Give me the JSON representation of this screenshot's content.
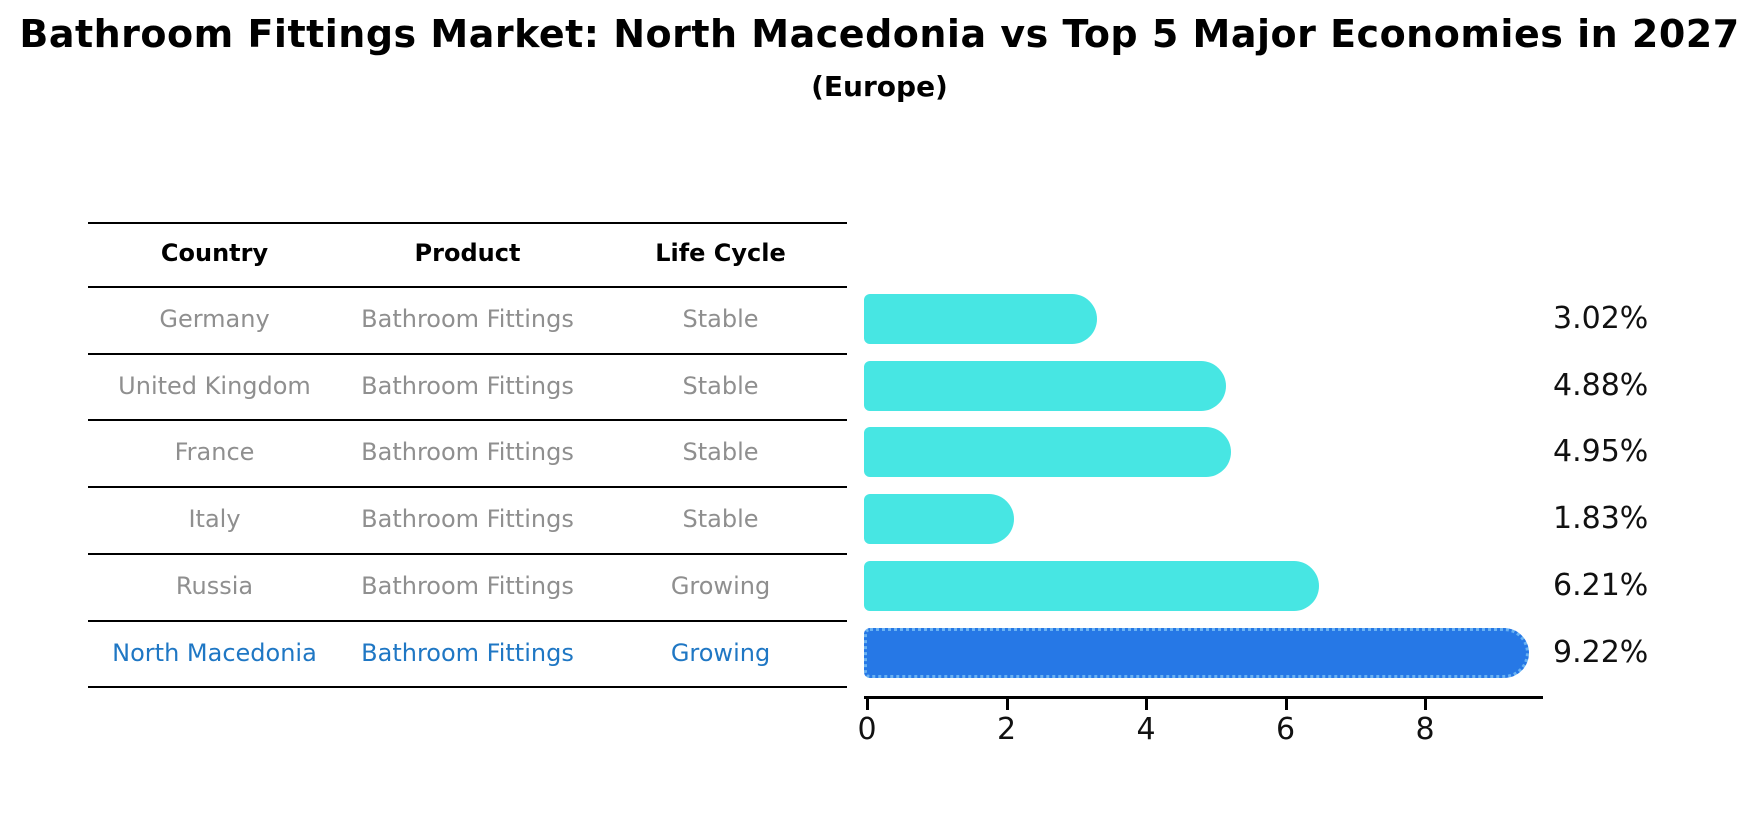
{
  "title": "Bathroom Fittings Market: North Macedonia vs Top 5 Major Economies in 2027",
  "subtitle": "(Europe)",
  "table": {
    "headers": [
      "Country",
      "Product",
      "Life Cycle"
    ],
    "rows": [
      {
        "country": "Germany",
        "product": "Bathroom Fittings",
        "life_cycle": "Stable",
        "highlight": false
      },
      {
        "country": "United Kingdom",
        "product": "Bathroom Fittings",
        "life_cycle": "Stable",
        "highlight": false
      },
      {
        "country": "France",
        "product": "Bathroom Fittings",
        "life_cycle": "Stable",
        "highlight": false
      },
      {
        "country": "Italy",
        "product": "Bathroom Fittings",
        "life_cycle": "Stable",
        "highlight": false
      },
      {
        "country": "Russia",
        "product": "Bathroom Fittings",
        "life_cycle": "Growing",
        "highlight": false
      },
      {
        "country": "North Macedonia",
        "product": "Bathroom Fittings",
        "life_cycle": "Growing",
        "highlight": true
      }
    ]
  },
  "chart_data": {
    "type": "bar",
    "orientation": "horizontal",
    "title": "Bathroom Fittings Market: North Macedonia vs Top 5 Major Economies in 2027",
    "subtitle": "(Europe)",
    "categories": [
      "Germany",
      "United Kingdom",
      "France",
      "Italy",
      "Russia",
      "North Macedonia"
    ],
    "values": [
      3.02,
      4.88,
      4.95,
      1.83,
      6.21,
      9.22
    ],
    "value_labels": [
      "3.02%",
      "4.88%",
      "4.95%",
      "1.83%",
      "6.21%",
      "9.22%"
    ],
    "highlight_index": 5,
    "xlim": [
      0,
      9.7
    ],
    "xticks": [
      0,
      2,
      4,
      6,
      8
    ],
    "xtick_labels": [
      "0",
      "2",
      "4",
      "6",
      "8"
    ],
    "grid": false,
    "legend": false,
    "bar_color": "#47e6e3",
    "highlight_bar_color": "#2678e6",
    "highlight_text_color": "#1f77c4",
    "text_color": "#8f8f8f"
  }
}
